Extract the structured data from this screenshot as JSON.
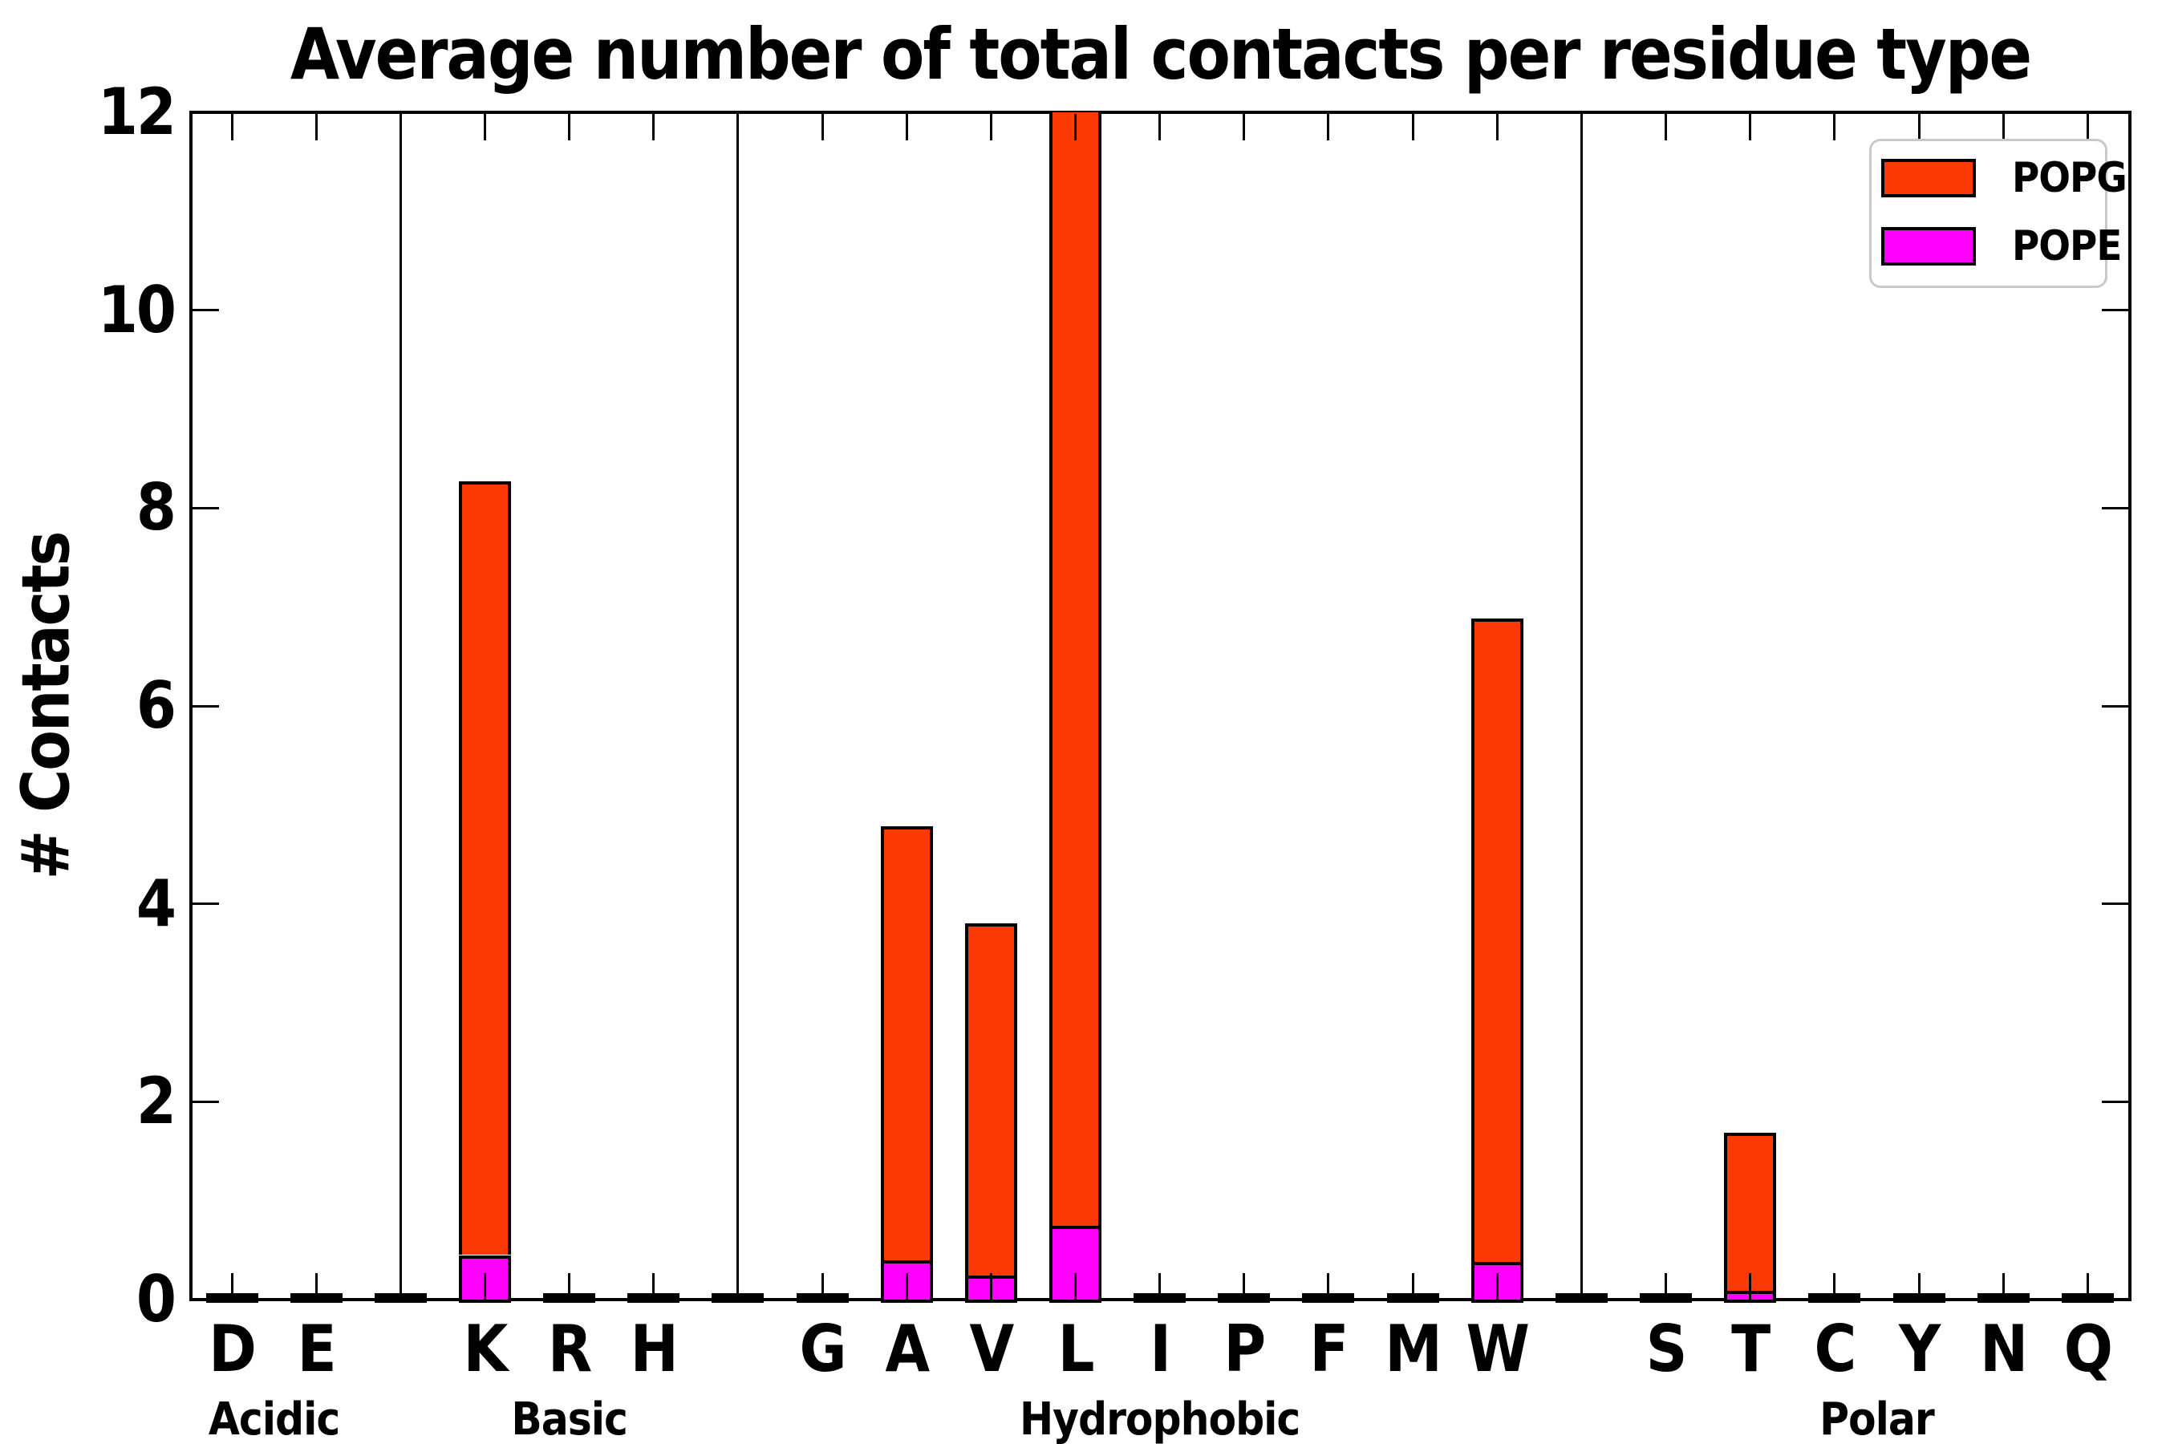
{
  "chart_data": {
    "type": "bar",
    "stacked": true,
    "title": "Average number of total contacts per residue type",
    "xlabel": "",
    "ylabel": "# Contacts",
    "ylim": [
      0,
      12
    ],
    "yticks": [
      0,
      2,
      4,
      6,
      8,
      10,
      12
    ],
    "grid": false,
    "legend_position": "upper right",
    "categories": [
      "D",
      "E",
      "K",
      "R",
      "H",
      "G",
      "A",
      "V",
      "L",
      "I",
      "P",
      "F",
      "M",
      "W",
      "S",
      "T",
      "C",
      "Y",
      "N",
      "Q"
    ],
    "series": [
      {
        "name": "POPG",
        "color": "#fb3a05",
        "values": [
          0,
          0,
          7.82,
          0,
          0,
          0,
          4.38,
          3.56,
          11.25,
          0,
          0,
          0,
          0,
          6.5,
          0,
          1.6,
          0,
          0,
          0,
          0
        ]
      },
      {
        "name": "POPE",
        "color": "#ff00ff",
        "values": [
          0,
          0,
          0.45,
          0,
          0,
          0,
          0.4,
          0.24,
          0.75,
          0,
          0,
          0,
          0,
          0.38,
          0,
          0.09,
          0,
          0,
          0,
          0
        ]
      }
    ],
    "stacked_totals": [
      0,
      0,
      8.27,
      0,
      0,
      0,
      4.78,
      3.8,
      12.0,
      0,
      0,
      0,
      0,
      6.88,
      0,
      1.69,
      0,
      0,
      0,
      0
    ],
    "clipped_at_top": [
      "L"
    ],
    "groups": [
      {
        "label": "Acidic",
        "residues": [
          "D",
          "E"
        ]
      },
      {
        "label": "Basic",
        "residues": [
          "K",
          "R",
          "H"
        ]
      },
      {
        "label": "Hydrophobic",
        "residues": [
          "G",
          "A",
          "V",
          "L",
          "I",
          "P",
          "F",
          "M",
          "W"
        ]
      },
      {
        "label": "Polar",
        "residues": [
          "S",
          "T",
          "C",
          "Y",
          "N",
          "Q"
        ]
      }
    ],
    "edge_color": "#000000"
  },
  "legend": {
    "items": [
      {
        "label": "POPG",
        "color": "#fb3a05"
      },
      {
        "label": "POPE",
        "color": "#ff00ff"
      }
    ]
  }
}
